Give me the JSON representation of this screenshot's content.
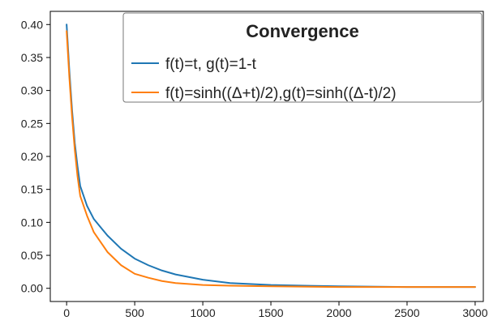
{
  "chart_data": {
    "type": "line",
    "title": "",
    "xlabel": "",
    "ylabel": "",
    "xlim": [
      -120,
      3060
    ],
    "ylim": [
      -0.02,
      0.42
    ],
    "xticks": [
      0,
      500,
      1000,
      1500,
      2000,
      2500,
      3000
    ],
    "yticks": [
      0.0,
      0.05,
      0.1,
      0.15,
      0.2,
      0.25,
      0.3,
      0.35,
      0.4
    ],
    "ytick_labels": [
      "0.00",
      "0.05",
      "0.10",
      "0.15",
      "0.20",
      "0.25",
      "0.30",
      "0.35",
      "0.40"
    ],
    "grid": false,
    "legend": {
      "title": "Convergence",
      "placement": "top-right"
    },
    "series": [
      {
        "name": "f(t)=t, g(t)=1-t",
        "color": "#1f77b4",
        "x": [
          0,
          20,
          40,
          60,
          80,
          100,
          150,
          200,
          300,
          400,
          500,
          600,
          700,
          800,
          1000,
          1200,
          1500,
          2000,
          2500,
          3000
        ],
        "y": [
          0.4,
          0.33,
          0.27,
          0.22,
          0.185,
          0.155,
          0.125,
          0.105,
          0.08,
          0.06,
          0.045,
          0.035,
          0.027,
          0.021,
          0.013,
          0.008,
          0.005,
          0.003,
          0.002,
          0.002
        ]
      },
      {
        "name": "f(t)=sinh((Δ+t)/2),g(t)=sinh((Δ-t)/2)",
        "color": "#ff7f0e",
        "x": [
          0,
          20,
          40,
          60,
          80,
          100,
          150,
          200,
          300,
          400,
          500,
          600,
          700,
          800,
          1000,
          1200,
          1500,
          2000,
          2500,
          3000
        ],
        "y": [
          0.39,
          0.32,
          0.26,
          0.21,
          0.17,
          0.14,
          0.11,
          0.085,
          0.055,
          0.035,
          0.022,
          0.016,
          0.011,
          0.008,
          0.005,
          0.004,
          0.003,
          0.002,
          0.002,
          0.002
        ]
      }
    ]
  }
}
